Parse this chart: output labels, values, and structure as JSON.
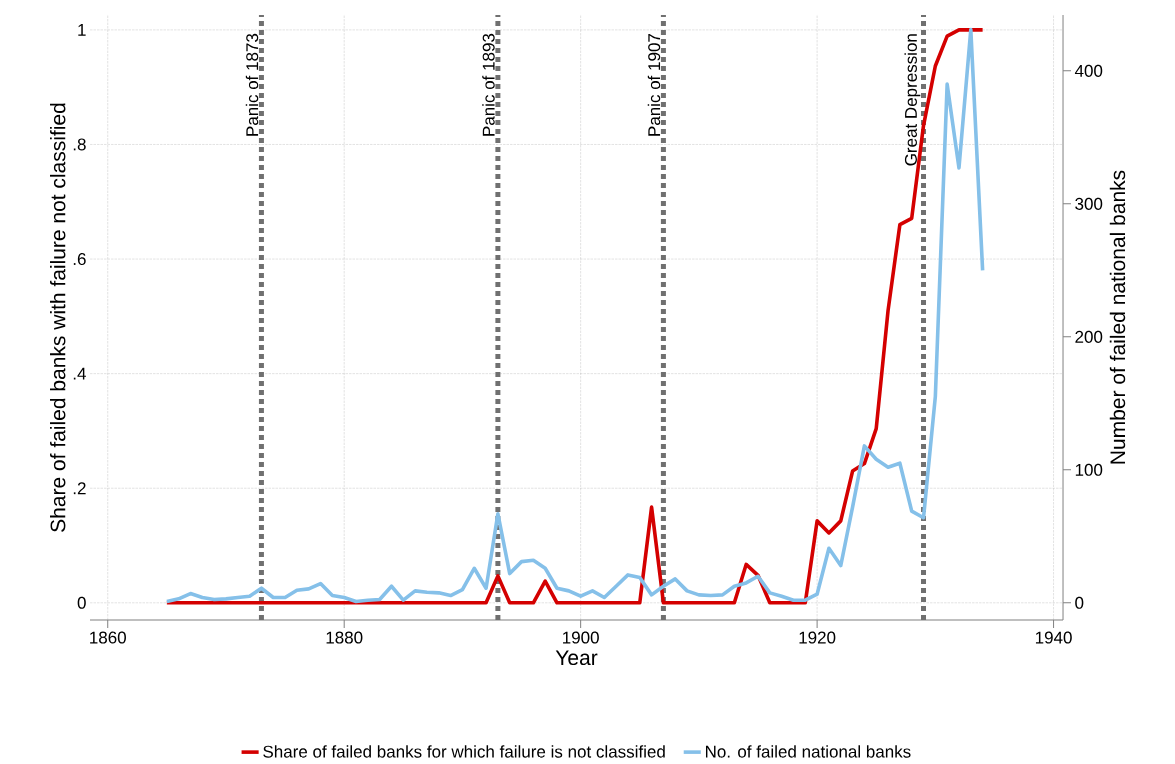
{
  "chart_data": {
    "type": "line",
    "x": [
      1865,
      1866,
      1867,
      1868,
      1869,
      1870,
      1871,
      1872,
      1873,
      1874,
      1875,
      1876,
      1877,
      1878,
      1879,
      1880,
      1881,
      1882,
      1883,
      1884,
      1885,
      1886,
      1887,
      1888,
      1889,
      1890,
      1891,
      1892,
      1893,
      1894,
      1895,
      1896,
      1897,
      1898,
      1899,
      1900,
      1901,
      1902,
      1903,
      1904,
      1905,
      1906,
      1907,
      1908,
      1909,
      1910,
      1911,
      1912,
      1913,
      1914,
      1915,
      1916,
      1917,
      1918,
      1919,
      1920,
      1921,
      1922,
      1923,
      1924,
      1925,
      1926,
      1927,
      1928,
      1929,
      1930,
      1931,
      1932,
      1933,
      1934
    ],
    "series": [
      {
        "name": "Share of failed banks for which failure is not classified",
        "color": "#d40000",
        "values": [
          0,
          0,
          0,
          0,
          0,
          0,
          0,
          0,
          0,
          0,
          0,
          0,
          0,
          0,
          0,
          0,
          0,
          0,
          0,
          0,
          0,
          0,
          0,
          0,
          0,
          0,
          0,
          0,
          0.047,
          0,
          0,
          0,
          0.038,
          0,
          0,
          0,
          0,
          0,
          0,
          0,
          0,
          0.167,
          0,
          0,
          0,
          0,
          0,
          0,
          0,
          0.067,
          0.048,
          0,
          0,
          0,
          0,
          0.143,
          0.122,
          0.143,
          0.23,
          0.243,
          0.304,
          0.51,
          0.66,
          0.671,
          0.833,
          0.937,
          0.989,
          1,
          1,
          1
        ]
      },
      {
        "name": "No. of failed national banks",
        "color": "#85c0e9",
        "axis": "y2",
        "values": [
          1,
          3,
          7,
          4,
          2.5,
          3,
          4,
          5,
          11,
          4,
          4,
          9.5,
          10.5,
          14.5,
          5.5,
          4,
          1,
          2,
          2.5,
          12.5,
          2,
          9,
          8,
          7.5,
          5.5,
          10,
          26,
          11,
          67,
          22,
          31,
          32,
          26,
          11,
          9,
          5,
          9,
          4,
          12.5,
          21,
          19,
          6,
          12.5,
          18,
          9,
          6,
          5.5,
          6,
          12.5,
          15,
          20,
          7.5,
          5,
          2,
          2,
          6.5,
          41,
          28,
          72,
          118,
          108,
          102,
          105,
          69,
          64,
          155,
          390,
          327,
          431,
          250
        ]
      }
    ],
    "xlabel": "Year",
    "ylabel": "Share of failed banks with failure not classified",
    "y2label": "Number of failed national banks",
    "xlim": [
      1858.5,
      1940.8
    ],
    "xticks": [
      1860,
      1880,
      1900,
      1920,
      1940
    ],
    "ylim": [
      -0.03,
      1.026
    ],
    "yticks": [
      0,
      {
        "value": 0.2,
        "label": ".2"
      },
      {
        "value": 0.4,
        "label": ".4"
      },
      {
        "value": 0.6,
        "label": ".6"
      },
      {
        "value": 0.8,
        "label": ".8"
      },
      1
    ],
    "y2lim": [
      -12.9,
      442
    ],
    "y2ticks": [
      0,
      100,
      200,
      300,
      400
    ],
    "ref_lines": [
      {
        "axis": "x",
        "value": 1873,
        "label": "Panic of 1873",
        "color": "#707070",
        "line_style": "dotted"
      },
      {
        "axis": "x",
        "value": 1893,
        "label": "Panic of 1893",
        "color": "#707070",
        "line_style": "dotted"
      },
      {
        "axis": "x",
        "value": 1907,
        "label": "Panic of 1907",
        "color": "#707070",
        "line_style": "dotted"
      },
      {
        "axis": "x",
        "value": 1929,
        "label": "Great Depression",
        "color": "#707070",
        "line_style": "dotted"
      }
    ],
    "grid": true,
    "legend": "bottom",
    "marker": "none",
    "line_style": "solid"
  }
}
